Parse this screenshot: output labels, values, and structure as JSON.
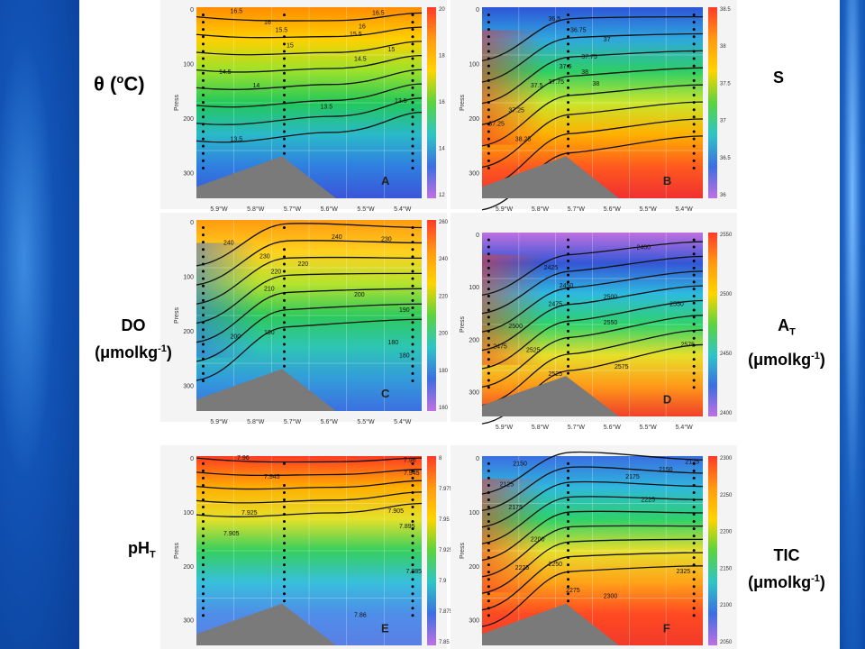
{
  "labels": {
    "theta": {
      "symbol": "θ",
      "rest": " (",
      "sup": "o",
      "unit": "C)"
    },
    "salinity": "S",
    "do": {
      "line1": "DO",
      "line2_pre": "(",
      "mu": "μ",
      "line2_mid": "molkg",
      "sup": "-1",
      "line2_post": ")"
    },
    "at": {
      "main": "A",
      "sub": "T",
      "line2_pre": "(",
      "mu": "μ",
      "line2_mid": "molkg",
      "sup": "-1",
      "line2_post": ")"
    },
    "ph": {
      "main": "pH",
      "sub": "T"
    },
    "tic": {
      "line1": "TIC",
      "line2_pre": "(",
      "mu": "μ",
      "line2_mid": "molkg",
      "sup": "-1",
      "line2_post": ")"
    }
  },
  "chart_data": [
    {
      "type": "heatmap",
      "panel": "A",
      "ylabel": "Press",
      "xticks": [
        "5.9°W",
        "5.8°W",
        "5.7°W",
        "5.6°W",
        "5.5°W",
        "5.4°W"
      ],
      "yticks": [
        "0",
        "100",
        "200",
        "300"
      ],
      "colorbar": [
        "20",
        "18",
        "16",
        "14",
        "12"
      ],
      "contours": [
        "16.5",
        "16",
        "15.5",
        "15",
        "14.5",
        "14",
        "13.5",
        "13.5",
        "16.5",
        "16",
        "15.5",
        "15",
        "14.5",
        "13.5"
      ],
      "palette": [
        "#ff8c00",
        "#ffd000",
        "#9be22b",
        "#22c85a",
        "#2ab9c9",
        "#2f7fe0",
        "#3b55d8"
      ]
    },
    {
      "type": "heatmap",
      "panel": "B",
      "ylabel": "Press",
      "xticks": [
        "5.9°W",
        "5.8°W",
        "5.7°W",
        "5.6°W",
        "5.5°W",
        "5.4°W"
      ],
      "yticks": [
        "0",
        "100",
        "200",
        "300"
      ],
      "colorbar": [
        "38.5",
        "38",
        "37.5",
        "37",
        "36.5",
        "36"
      ],
      "contours": [
        "36.5",
        "36.75",
        "37",
        "37.25",
        "37.5",
        "37.75",
        "38",
        "38.25",
        "37.25",
        "37.75",
        "37.5",
        "38"
      ],
      "palette": [
        "#2d55d8",
        "#2fa8de",
        "#2dce66",
        "#c9e62b",
        "#ffb000",
        "#ff5a1e",
        "#f03030"
      ]
    },
    {
      "type": "heatmap",
      "panel": "C",
      "ylabel": "Press",
      "xticks": [
        "5.9°W",
        "5.8°W",
        "5.7°W",
        "5.6°W",
        "5.5°W",
        "5.4°W"
      ],
      "yticks": [
        "0",
        "100",
        "200",
        "300"
      ],
      "colorbar": [
        "260",
        "240",
        "220",
        "200",
        "180",
        "160"
      ],
      "contours": [
        "240",
        "230",
        "220",
        "210",
        "200",
        "190",
        "180",
        "240",
        "230",
        "220",
        "200",
        "190",
        "180"
      ],
      "palette": [
        "#ff9a10",
        "#ffd11e",
        "#b6e32e",
        "#2dc95a",
        "#2ec5b5",
        "#339bdb",
        "#3b70e0"
      ]
    },
    {
      "type": "heatmap",
      "panel": "D",
      "ylabel": "Press",
      "xticks": [
        "5.9°W",
        "5.8°W",
        "5.7°W",
        "5.6°W",
        "5.5°W",
        "5.4°W"
      ],
      "yticks": [
        "0",
        "100",
        "200",
        "300"
      ],
      "colorbar": [
        "2550",
        "2500",
        "2450",
        "2400"
      ],
      "contours": [
        "2400",
        "2425",
        "2450",
        "2475",
        "2500",
        "2525",
        "2550",
        "2575",
        "2475",
        "2525",
        "2575",
        "2500",
        "2550"
      ],
      "palette": [
        "#c070e0",
        "#3456d6",
        "#2dbadf",
        "#2fd26a",
        "#e6e02a",
        "#ff9a18",
        "#f0402a"
      ]
    },
    {
      "type": "heatmap",
      "panel": "E",
      "ylabel": "Press",
      "xticks": [
        "5.9°W",
        "5.8°W",
        "5.7°W",
        "5.6°W",
        "5.5°W",
        "5.4°W"
      ],
      "yticks": [
        "0",
        "100",
        "200",
        "300"
      ],
      "colorbar": [
        "8",
        "7.975",
        "7.95",
        "7.925",
        "7.9",
        "7.875",
        "7.85"
      ],
      "contours": [
        "7.96",
        "7.945",
        "7.925",
        "7.905",
        "7.96",
        "7.945",
        "7.905",
        "7.895",
        "7.885",
        "7.86"
      ],
      "palette": [
        "#ff3a24",
        "#ffb000",
        "#e5e12a",
        "#35cf5e",
        "#37bfdc",
        "#4e8ee8",
        "#5a7fe6"
      ]
    },
    {
      "type": "heatmap",
      "panel": "F",
      "ylabel": "Press",
      "xticks": [
        "5.9°W",
        "5.8°W",
        "5.7°W",
        "5.6°W",
        "5.5°W",
        "5.4°W"
      ],
      "yticks": [
        "0",
        "100",
        "200",
        "300"
      ],
      "colorbar": [
        "2300",
        "2250",
        "2200",
        "2150",
        "2100",
        "2050"
      ],
      "contours": [
        "2150",
        "2125",
        "2175",
        "2200",
        "2225",
        "2250",
        "2275",
        "2300",
        "2325",
        "2125",
        "2150",
        "2175",
        "2225"
      ],
      "palette": [
        "#3a6ee2",
        "#2fb8dc",
        "#2ed16b",
        "#e6df2c",
        "#ffa218",
        "#ff4a22",
        "#f23a2a"
      ]
    }
  ]
}
